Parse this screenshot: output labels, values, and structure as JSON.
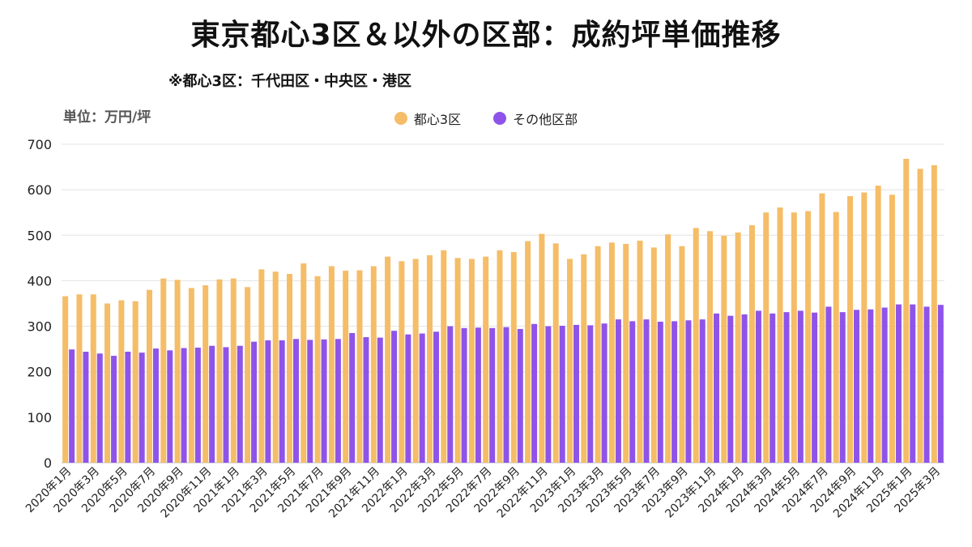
{
  "title": "東京都心3区＆以外の区部：成約坪単価推移",
  "subtitle": "※都心3区：千代田区・中央区・港区",
  "unit_label": "単位：万円/坪",
  "colors": {
    "central": "#F5BD67",
    "other": "#8E54E9",
    "grid": "#E3E3E3"
  },
  "chart_data": {
    "type": "bar",
    "ylim": [
      0,
      700
    ],
    "yticks": [
      0,
      100,
      200,
      300,
      400,
      500,
      600,
      700
    ],
    "legend_position": "top-center",
    "grid": true,
    "categories": [
      "2020年1月",
      "2020年2月",
      "2020年3月",
      "2020年4月",
      "2020年5月",
      "2020年6月",
      "2020年7月",
      "2020年8月",
      "2020年9月",
      "2020年10月",
      "2020年11月",
      "2020年12月",
      "2021年1月",
      "2021年2月",
      "2021年3月",
      "2021年4月",
      "2021年5月",
      "2021年6月",
      "2021年7月",
      "2021年8月",
      "2021年9月",
      "2021年10月",
      "2021年11月",
      "2021年12月",
      "2022年1月",
      "2022年2月",
      "2022年3月",
      "2022年4月",
      "2022年5月",
      "2022年6月",
      "2022年7月",
      "2022年8月",
      "2022年9月",
      "2022年10月",
      "2022年11月",
      "2022年12月",
      "2023年1月",
      "2023年2月",
      "2023年3月",
      "2023年4月",
      "2023年5月",
      "2023年6月",
      "2023年7月",
      "2023年8月",
      "2023年9月",
      "2023年10月",
      "2023年11月",
      "2023年12月",
      "2024年1月",
      "2024年2月",
      "2024年3月",
      "2024年4月",
      "2024年5月",
      "2024年6月",
      "2024年7月",
      "2024年8月",
      "2024年9月",
      "2024年10月",
      "2024年11月",
      "2024年12月",
      "2025年1月",
      "2025年2月",
      "2025年3月"
    ],
    "tick_labels": [
      "2020年1月",
      "2020年3月",
      "2020年5月",
      "2020年7月",
      "2020年9月",
      "2020年11月",
      "2021年1月",
      "2021年3月",
      "2021年5月",
      "2021年7月",
      "2021年9月",
      "2021年11月",
      "2022年1月",
      "2022年3月",
      "2022年5月",
      "2022年7月",
      "2022年9月",
      "2022年11月",
      "2023年1月",
      "2023年3月",
      "2023年5月",
      "2023年7月",
      "2023年9月",
      "2023年11月",
      "2024年1月",
      "2024年3月",
      "2024年5月",
      "2024年7月",
      "2024年9月",
      "2024年11月",
      "2025年1月",
      "2025年3月"
    ],
    "series": [
      {
        "name": "都心3区",
        "values": [
          366,
          370,
          370,
          350,
          357,
          355,
          380,
          405,
          402,
          384,
          390,
          403,
          405,
          386,
          425,
          420,
          415,
          438,
          410,
          432,
          422,
          423,
          432,
          453,
          443,
          448,
          456,
          467,
          450,
          448,
          453,
          467,
          463,
          487,
          503,
          482,
          448,
          458,
          476,
          484,
          481,
          488,
          473,
          502,
          476,
          516,
          509,
          499,
          506,
          522,
          550,
          561,
          550,
          553,
          592,
          551,
          586,
          594,
          609,
          589,
          668,
          646,
          654
        ]
      },
      {
        "name": "その他区部",
        "values": [
          249,
          244,
          240,
          235,
          244,
          242,
          251,
          247,
          252,
          253,
          257,
          254,
          257,
          266,
          269,
          269,
          272,
          270,
          271,
          272,
          285,
          276,
          275,
          290,
          282,
          284,
          288,
          300,
          296,
          297,
          296,
          298,
          294,
          305,
          300,
          301,
          303,
          302,
          306,
          315,
          311,
          315,
          310,
          311,
          313,
          315,
          328,
          323,
          326,
          334,
          328,
          331,
          334,
          330,
          343,
          331,
          336,
          337,
          341,
          348,
          348,
          343,
          347
        ]
      }
    ]
  }
}
